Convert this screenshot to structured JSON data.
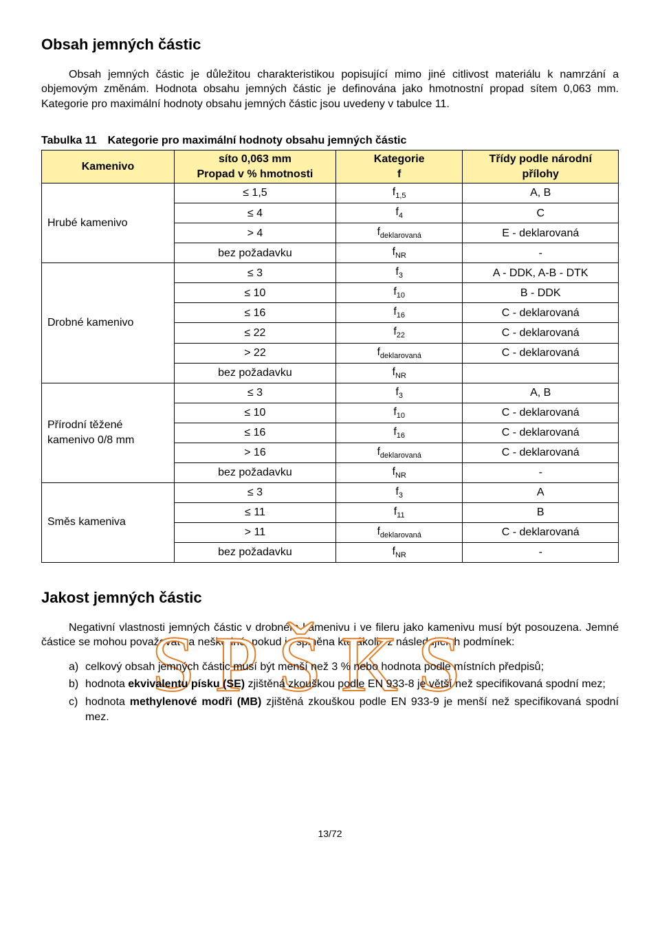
{
  "heading1": "Obsah jemných částic",
  "para1": "Obsah jemných částic je důležitou charakteristikou popisující mimo jiné citlivost materiálu k namrzání a objemovým změnám. Hodnota obsahu jemných částic je definována jako hmotnostní propad sítem 0,063 mm. Kategorie pro maximální hodnoty obsahu jemných částic jsou uvedeny v tabulce 11.",
  "table_caption": "Tabulka 11 Kategorie pro maximální hodnoty obsahu jemných částic",
  "header_bg": "#fff2a8",
  "header": {
    "col1": "Kamenivo",
    "col2a": "síto 0,063 mm",
    "col2b": "Propad v % hmotnosti",
    "col3a": "Kategorie",
    "col3b": "f",
    "col4a": "Třídy podle národní",
    "col4b": "přílohy"
  },
  "rows": [
    {
      "group": "Hrubé kamenivo",
      "span": 4,
      "sito": "≤ 1,5",
      "kat": "f",
      "sub": "1,5",
      "trida": "A, B"
    },
    {
      "sito": "≤ 4",
      "kat": "f",
      "sub": "4",
      "trida": "C"
    },
    {
      "sito": "> 4",
      "kat": "f",
      "sub": "deklarovaná",
      "trida": "E - deklarovaná"
    },
    {
      "sito": "bez požadavku",
      "kat": "f",
      "sub": "NR",
      "trida": "-"
    },
    {
      "group": "Drobné kamenivo",
      "span": 6,
      "sito": "≤ 3",
      "kat": "f",
      "sub": "3",
      "trida": "A - DDK, A-B - DTK"
    },
    {
      "sito": "≤ 10",
      "kat": "f",
      "sub": "10",
      "trida": "B - DDK"
    },
    {
      "sito": "≤ 16",
      "kat": "f",
      "sub": "16",
      "trida": "C - deklarovaná"
    },
    {
      "sito": "≤ 22",
      "kat": "f",
      "sub": "22",
      "trida": "C - deklarovaná"
    },
    {
      "sito": "> 22",
      "kat": "f",
      "sub": "deklarovaná",
      "trida": "C - deklarovaná"
    },
    {
      "sito": "bez požadavku",
      "kat": "f",
      "sub": "NR",
      "trida": ""
    },
    {
      "group": "Přírodní těžené kamenivo 0/8 mm",
      "span": 5,
      "sito": "≤ 3",
      "kat": "f",
      "sub": "3",
      "trida": "A, B"
    },
    {
      "sito": "≤ 10",
      "kat": "f",
      "sub": "10",
      "trida": "C - deklarovaná"
    },
    {
      "sito": "≤ 16",
      "kat": "f",
      "sub": "16",
      "trida": "C - deklarovaná"
    },
    {
      "sito": "> 16",
      "kat": "f",
      "sub": "deklarovaná",
      "trida": "C - deklarovaná"
    },
    {
      "sito": "bez požadavku",
      "kat": "f",
      "sub": "NR",
      "trida": "-"
    },
    {
      "group": "Směs kameniva",
      "span": 4,
      "sito": "≤ 3",
      "kat": "f",
      "sub": "3",
      "trida": "A"
    },
    {
      "sito": "≤ 11",
      "kat": "f",
      "sub": "11",
      "trida": "B"
    },
    {
      "sito": "> 11",
      "kat": "f",
      "sub": "deklarovaná",
      "trida": "C - deklarovaná"
    },
    {
      "sito": "bez požadavku",
      "kat": "f",
      "sub": "NR",
      "trida": "-"
    }
  ],
  "watermark": "SPŠKS",
  "heading2": "Jakost jemných částic",
  "para2": "Negativní vlastnosti jemných částic v drobném kamenivu i ve fileru jako kamenivu musí být posouzena. Jemné částice se mohou považovat za neškodné, pokud je splněna kterákoliv z následujících podmínek:",
  "list": [
    {
      "marker": "a)",
      "text": "celkový obsah jemných částic musí být menší než 3 % nebo hodnota podle místních předpisů;"
    },
    {
      "marker": "b)",
      "html": "hodnota <b>ekvivalentu písku (SE)</b> zjištěná zkouškou podle EN 933-8 je větší než specifikovaná spodní mez;"
    },
    {
      "marker": "c)",
      "html": "hodnota <b>methylenové modři (MB)</b> zjištěná zkouškou podle EN 933-9 je menší než specifikovaná spodní mez."
    }
  ],
  "pagefoot": "13/72",
  "col_widths": [
    "23%",
    "28%",
    "22%",
    "27%"
  ]
}
